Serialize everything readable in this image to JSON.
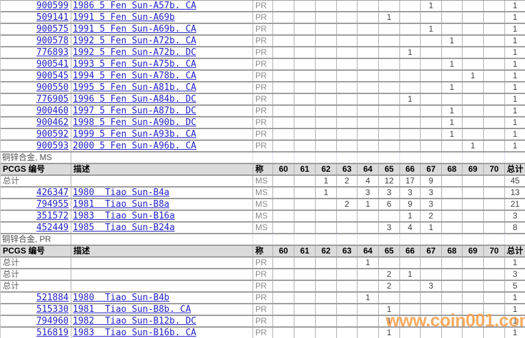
{
  "watermark": "www.coin001.com",
  "colors": {
    "link_blue": "#2222C8",
    "header_bg": "#DBDBDB",
    "grid_line": "#9D9D9D",
    "watermark_orange": "#F89E46"
  },
  "table": {
    "headers": {
      "pcgs": "PCGS 编号",
      "desc": "描述",
      "grade": "称",
      "grades": [
        "60",
        "61",
        "62",
        "63",
        "64",
        "65",
        "66",
        "67",
        "68",
        "69",
        "70"
      ],
      "total": "总计"
    },
    "total_label": "总计",
    "sections": [
      {
        "rows": [
          {
            "pcgs": "900599",
            "desc": "1986 5 Fen Sun-A57b. CA",
            "grade": "PR",
            "vals": [
              "",
              "",
              "",
              "",
              "",
              "",
              "",
              "1",
              "",
              "",
              ""
            ],
            "total": "1"
          },
          {
            "pcgs": "509141",
            "desc": "1991 5 Fen Sun-A69b",
            "grade": "PR",
            "vals": [
              "",
              "",
              "",
              "",
              "",
              "1",
              "",
              "",
              "",
              "",
              ""
            ],
            "total": "1"
          },
          {
            "pcgs": "900575",
            "desc": "1991 5 Fen Sun-A69b. CA",
            "grade": "PR",
            "vals": [
              "",
              "",
              "",
              "",
              "",
              "",
              "",
              "1",
              "",
              "",
              ""
            ],
            "total": "1"
          },
          {
            "pcgs": "900578",
            "desc": "1992 5 Fen Sun-A72b. CA",
            "grade": "PR",
            "vals": [
              "",
              "",
              "",
              "",
              "",
              "",
              "",
              "",
              "1",
              "",
              ""
            ],
            "total": "1"
          },
          {
            "pcgs": "776893",
            "desc": "1992 5 Fen Sun-A72b. DC",
            "grade": "PR",
            "vals": [
              "",
              "",
              "",
              "",
              "",
              "",
              "1",
              "",
              "",
              "",
              ""
            ],
            "total": "1"
          },
          {
            "pcgs": "900541",
            "desc": "1993 5 Fen Sun-A75b. CA",
            "grade": "PR",
            "vals": [
              "",
              "",
              "",
              "",
              "",
              "",
              "",
              "",
              "1",
              "",
              ""
            ],
            "total": "1"
          },
          {
            "pcgs": "900545",
            "desc": "1994 5 Fen Sun-A78b. CA",
            "grade": "PR",
            "vals": [
              "",
              "",
              "",
              "",
              "",
              "",
              "",
              "",
              "",
              "1",
              ""
            ],
            "total": "1"
          },
          {
            "pcgs": "900550",
            "desc": "1995 5 Fen Sun-A81b. CA",
            "grade": "PR",
            "vals": [
              "",
              "",
              "",
              "",
              "",
              "",
              "",
              "",
              "1",
              "",
              ""
            ],
            "total": "1"
          },
          {
            "pcgs": "776905",
            "desc": "1996 5 Fen Sun-A84b. DC",
            "grade": "PR",
            "vals": [
              "",
              "",
              "",
              "",
              "",
              "",
              "1",
              "",
              "",
              "",
              ""
            ],
            "total": "1"
          },
          {
            "pcgs": "900460",
            "desc": "1997 5 Fen Sun-A87b. DC",
            "grade": "PR",
            "vals": [
              "",
              "",
              "",
              "",
              "",
              "",
              "",
              "",
              "1",
              "",
              ""
            ],
            "total": "1"
          },
          {
            "pcgs": "900462",
            "desc": "1998 5 Fen Sun-A90b. DC",
            "grade": "PR",
            "vals": [
              "",
              "",
              "",
              "",
              "",
              "",
              "",
              "",
              "1",
              "",
              ""
            ],
            "total": "1"
          },
          {
            "pcgs": "900592",
            "desc": "1999 5 Fen Sun-A93b. CA",
            "grade": "PR",
            "vals": [
              "",
              "",
              "",
              "",
              "",
              "",
              "",
              "",
              "1",
              "",
              ""
            ],
            "total": "1"
          },
          {
            "pcgs": "900593",
            "desc": "2000 5 Fen Sun-A96b. CA",
            "grade": "PR",
            "vals": [
              "",
              "",
              "",
              "",
              "",
              "",
              "",
              "",
              "",
              "1",
              ""
            ],
            "total": "1"
          }
        ]
      },
      {
        "label": "铜锌合金, MS",
        "header": true,
        "rows": [
          {
            "total_row": true,
            "pcgs": "",
            "desc": "",
            "grade": "MS",
            "vals": [
              "",
              "",
              "1",
              "2",
              "4",
              "12",
              "17",
              "9",
              "",
              "",
              ""
            ],
            "total": "45"
          },
          {
            "pcgs": "426347",
            "desc": "1980  Tiao Sun-B4a",
            "grade": "MS",
            "vals": [
              "",
              "",
              "1",
              "",
              "3",
              "3",
              "3",
              "3",
              "",
              "",
              ""
            ],
            "total": "13"
          },
          {
            "pcgs": "794955",
            "desc": "1981  Tiao Sun-B8a",
            "grade": "MS",
            "vals": [
              "",
              "",
              "",
              "2",
              "1",
              "6",
              "9",
              "3",
              "",
              "",
              ""
            ],
            "total": "21"
          },
          {
            "pcgs": "351572",
            "desc": "1983  Tiao Sun-B16a",
            "grade": "MS",
            "vals": [
              "",
              "",
              "",
              "",
              "",
              "",
              "1",
              "2",
              "",
              "",
              ""
            ],
            "total": "3"
          },
          {
            "pcgs": "452449",
            "desc": "1985  Tiao Sun-B24a",
            "grade": "MS",
            "vals": [
              "",
              "",
              "",
              "",
              "",
              "3",
              "4",
              "1",
              "",
              "",
              ""
            ],
            "total": "8"
          }
        ]
      },
      {
        "label": "铜锌合金, PR",
        "header": true,
        "rows": [
          {
            "total_row": true,
            "pcgs": "",
            "desc": "",
            "grade": "PR",
            "vals": [
              "",
              "",
              "",
              "",
              "1",
              "",
              "",
              "",
              "",
              "",
              ""
            ],
            "total": "1"
          },
          {
            "total_row": true,
            "pcgs": "",
            "desc": "",
            "grade": "PR",
            "vals": [
              "",
              "",
              "",
              "",
              "",
              "2",
              "1",
              "",
              "",
              "",
              ""
            ],
            "total": "3"
          },
          {
            "total_row": true,
            "pcgs": "",
            "desc": "",
            "grade": "PR",
            "vals": [
              "",
              "",
              "",
              "",
              "",
              "2",
              "",
              "3",
              "",
              "",
              ""
            ],
            "total": "5"
          },
          {
            "pcgs": "521884",
            "desc": "1980  Tiao Sun-B4b",
            "grade": "PR",
            "vals": [
              "",
              "",
              "",
              "",
              "1",
              "",
              "",
              "",
              "",
              "",
              ""
            ],
            "total": "1"
          },
          {
            "pcgs": "515330",
            "desc": "1981  Tiao Sun-B8b. CA",
            "grade": "PR",
            "vals": [
              "",
              "",
              "",
              "",
              "",
              "1",
              "",
              "",
              "",
              "",
              ""
            ],
            "total": "1"
          },
          {
            "pcgs": "794960",
            "desc": "1982  Tiao Sun-B12b. DC",
            "grade": "PR",
            "vals": [
              "",
              "",
              "",
              "",
              "",
              "1",
              "",
              "",
              "",
              "",
              ""
            ],
            "total": "1"
          },
          {
            "pcgs": "516819",
            "desc": "1983  Tiao Sun-B16b. CA",
            "grade": "PR",
            "vals": [
              "",
              "",
              "",
              "",
              "",
              "1",
              "",
              "",
              "",
              "",
              ""
            ],
            "total": "1"
          }
        ]
      }
    ]
  }
}
